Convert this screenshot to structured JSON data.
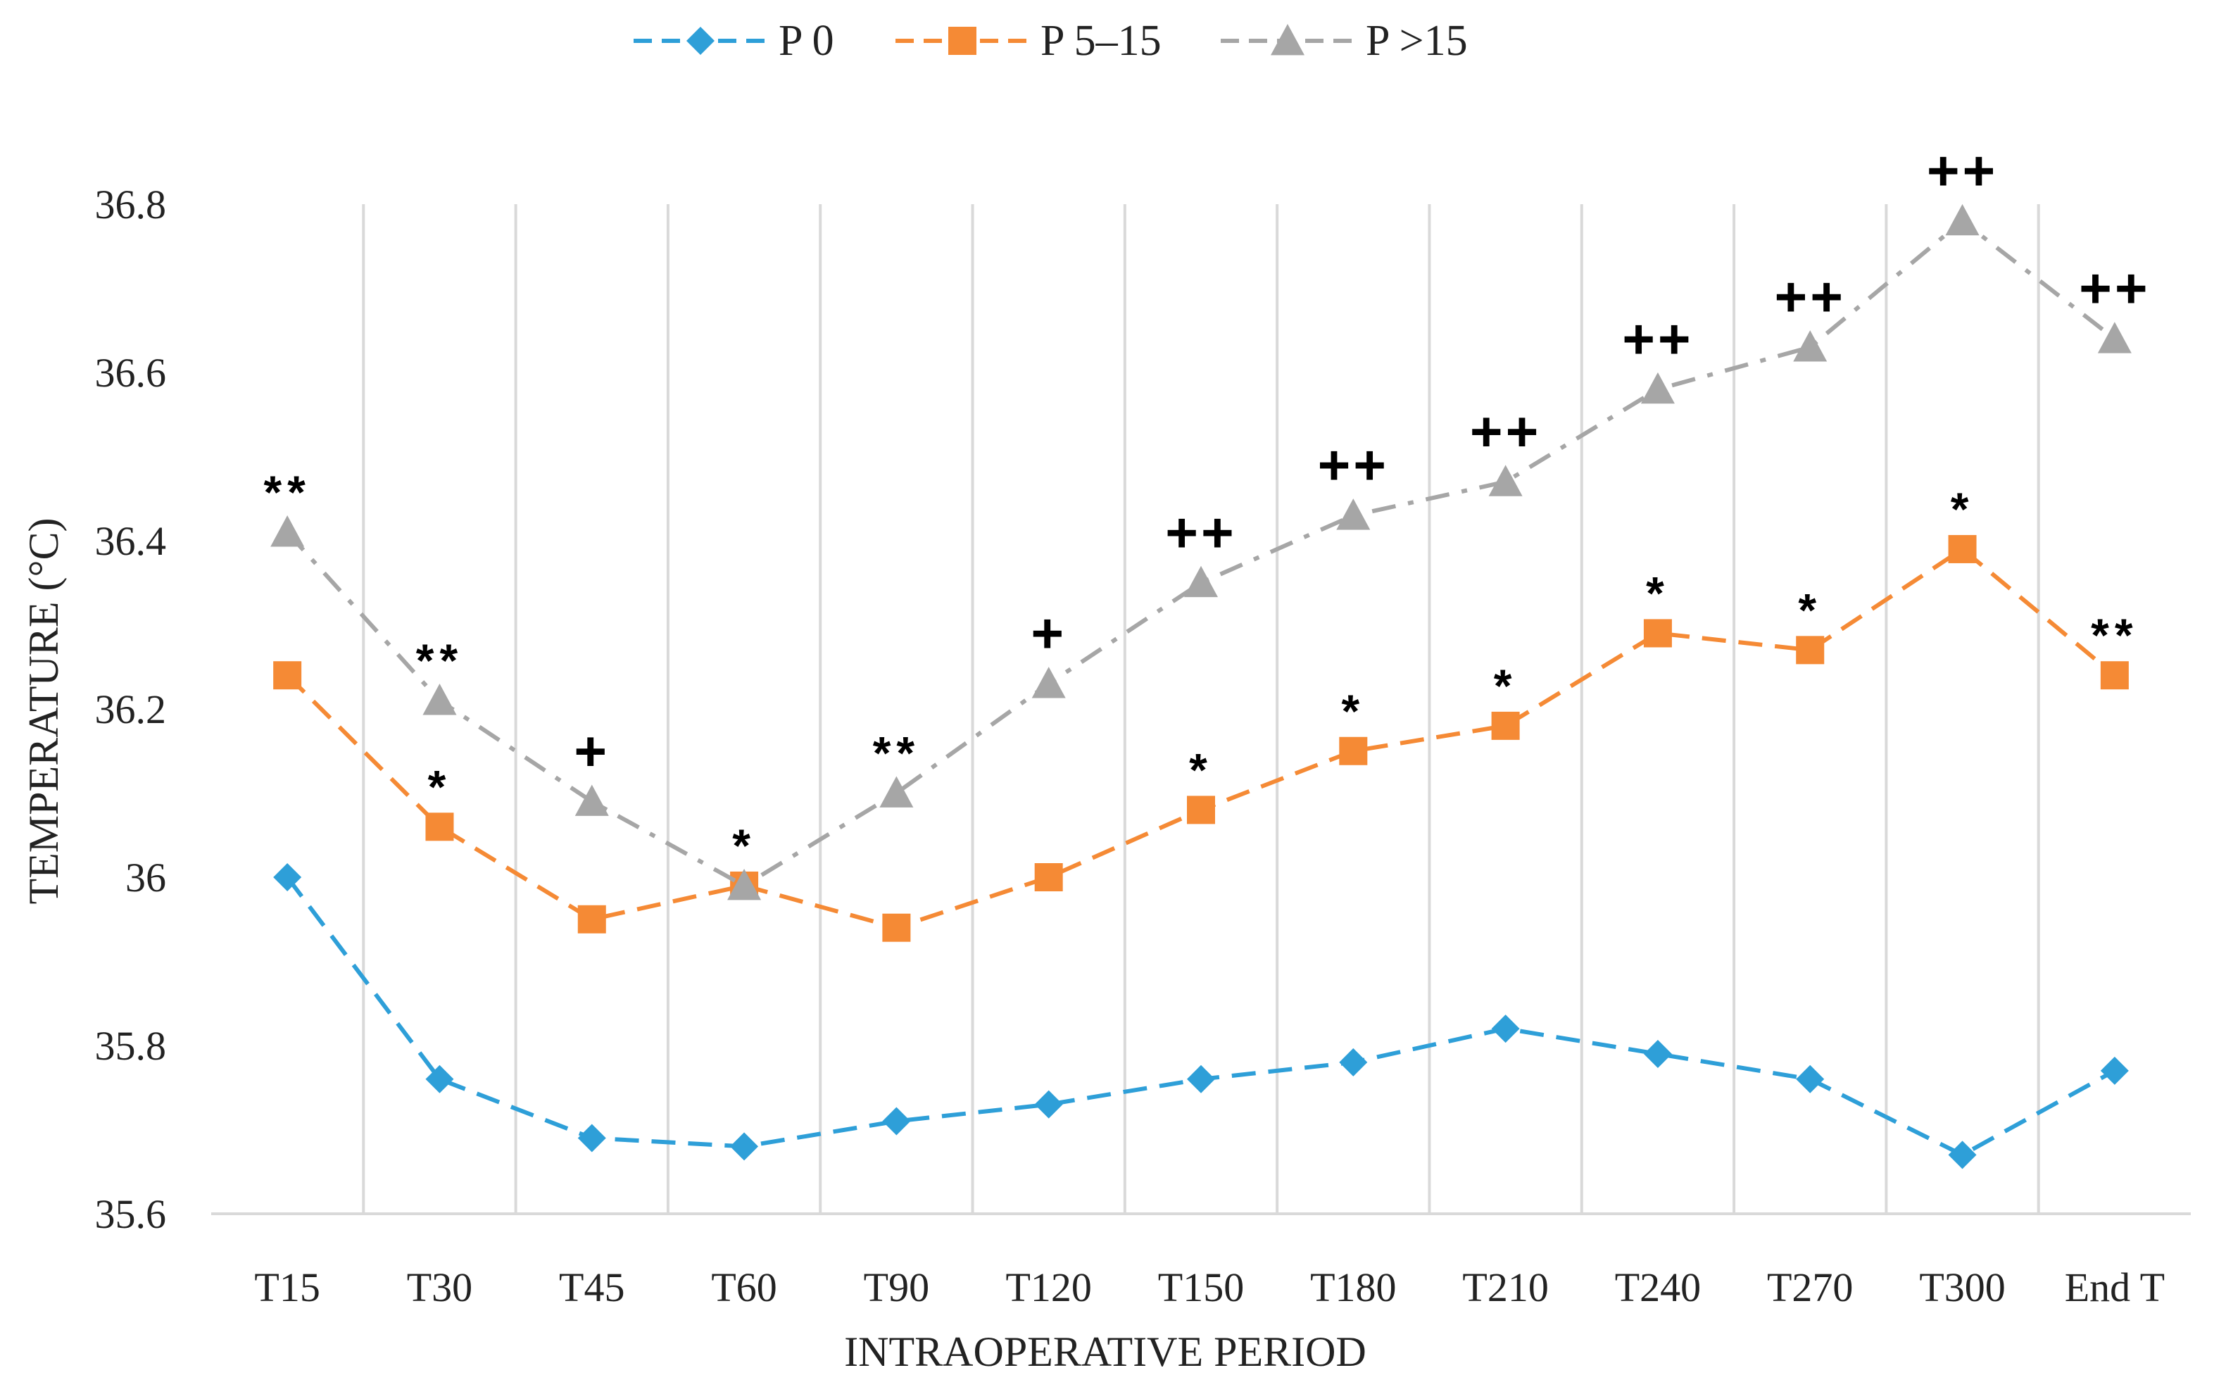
{
  "chart_data": {
    "type": "line",
    "title": "",
    "xlabel": "INTRAOPERATIVE PERIOD",
    "ylabel": "TEMPERATURE  (°C)",
    "ylim": [
      35.6,
      36.8
    ],
    "yticks": [
      35.6,
      35.8,
      36,
      36.2,
      36.4,
      36.6,
      36.8
    ],
    "ytick_labels": [
      "35.6",
      "35.8",
      "36",
      "36.2",
      "36.4",
      "36.6",
      "36.8"
    ],
    "grid": "vertical",
    "legend_position": "top-center",
    "categories": [
      "T15",
      "T30",
      "T45",
      "T60",
      "T90",
      "T120",
      "T150",
      "T180",
      "T210",
      "T240",
      "T270",
      "T300",
      "End T"
    ],
    "series": [
      {
        "name": "P 0",
        "color": "#2e9fd8",
        "marker": "diamond",
        "values": [
          36.0,
          35.76,
          35.69,
          35.68,
          35.71,
          35.73,
          35.76,
          35.78,
          35.82,
          35.79,
          35.76,
          35.67,
          35.77
        ]
      },
      {
        "name": "P 5–15",
        "color": "#f58a35",
        "marker": "square",
        "values": [
          36.24,
          36.06,
          35.95,
          35.99,
          35.94,
          36.0,
          36.08,
          36.15,
          36.18,
          36.29,
          36.27,
          36.39,
          36.24
        ],
        "annotations": [
          "",
          "*",
          "",
          "",
          "",
          "",
          "*",
          "*",
          "*",
          "*",
          "*",
          "*",
          "**"
        ]
      },
      {
        "name": "P >15",
        "color": "#a6a6a6",
        "marker": "triangle",
        "values": [
          36.41,
          36.21,
          36.09,
          35.99,
          36.1,
          36.23,
          36.35,
          36.43,
          36.47,
          36.58,
          36.63,
          36.78,
          36.64
        ],
        "annotations": [
          "**",
          "**",
          "+",
          "*",
          "**",
          "+",
          "++",
          "++",
          "++",
          "++",
          "++",
          "++",
          "++"
        ]
      }
    ]
  }
}
